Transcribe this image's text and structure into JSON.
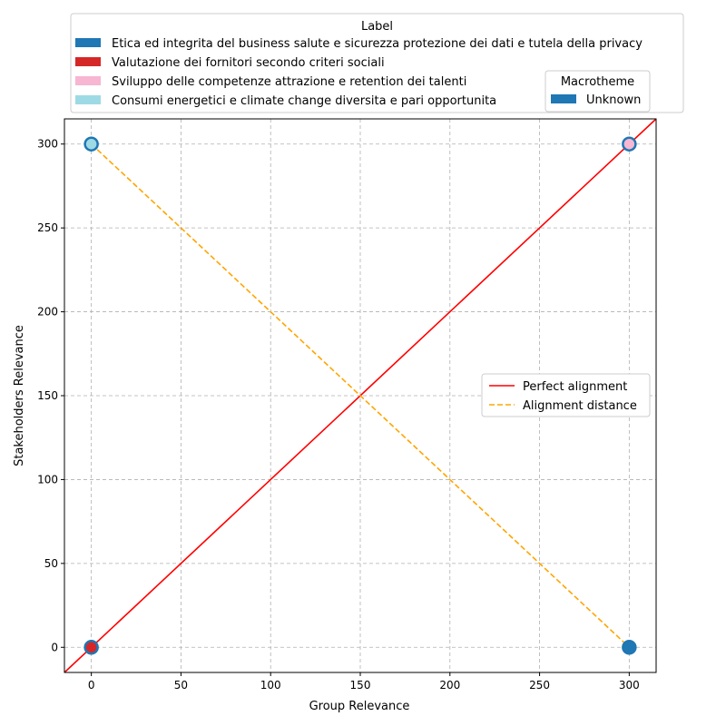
{
  "chart_data": {
    "type": "scatter",
    "title": "",
    "xlabel": "Group Relevance",
    "ylabel": "Stakeholders Relevance",
    "xlim": [
      -15,
      315
    ],
    "ylim": [
      -15,
      315
    ],
    "xticks": [
      0,
      50,
      100,
      150,
      200,
      250,
      300
    ],
    "yticks": [
      0,
      50,
      100,
      150,
      200,
      250,
      300
    ],
    "grid": true,
    "points": [
      {
        "x": 0,
        "y": 300,
        "label": "Consumi energetici e climate change diversita e pari opportunita",
        "color": "#9edae5",
        "edge": "#1f77b4"
      },
      {
        "x": 300,
        "y": 300,
        "label": "Sviluppo delle competenze attrazione e retention dei talenti",
        "color": "#f7b6d2",
        "edge": "#1f77b4"
      },
      {
        "x": 0,
        "y": 0,
        "label": "Valutazione dei fornitori secondo criteri sociali",
        "color": "#d62728",
        "edge": "#1f77b4"
      },
      {
        "x": 300,
        "y": 0,
        "label": "Etica ed integrita del business salute e sicurezza protezione dei dati e tutela della privacy",
        "color": "#1f77b4",
        "edge": "#1f77b4"
      }
    ],
    "lines": [
      {
        "name": "Perfect alignment",
        "style": "solid",
        "color": "#ff0000",
        "x": [
          -15,
          315
        ],
        "y": [
          -15,
          315
        ]
      },
      {
        "name": "Alignment distance",
        "style": "dashed",
        "color": "#ffa500",
        "x": [
          0,
          300
        ],
        "y": [
          300,
          0
        ]
      }
    ],
    "label_legend": {
      "title": "Label",
      "placement": "top",
      "entries": [
        {
          "text": "Etica ed integrita del business salute e sicurezza protezione dei dati e tutela della privacy",
          "color": "#1f77b4"
        },
        {
          "text": "Valutazione dei fornitori secondo criteri sociali",
          "color": "#d62728"
        },
        {
          "text": "Sviluppo delle competenze attrazione e retention dei talenti",
          "color": "#f7b6d2"
        },
        {
          "text": "Consumi energetici e climate change diversita e pari opportunita",
          "color": "#9edae5"
        }
      ]
    },
    "macrotheme_legend": {
      "title": "Macrotheme",
      "placement": "top-right",
      "entries": [
        {
          "text": "Unknown",
          "color": "#1f77b4"
        }
      ]
    },
    "line_legend": {
      "placement": "center-right",
      "entries": [
        {
          "text": "Perfect alignment",
          "color": "#ff0000",
          "style": "solid"
        },
        {
          "text": "Alignment distance",
          "color": "#ffa500",
          "style": "dashed"
        }
      ]
    }
  }
}
